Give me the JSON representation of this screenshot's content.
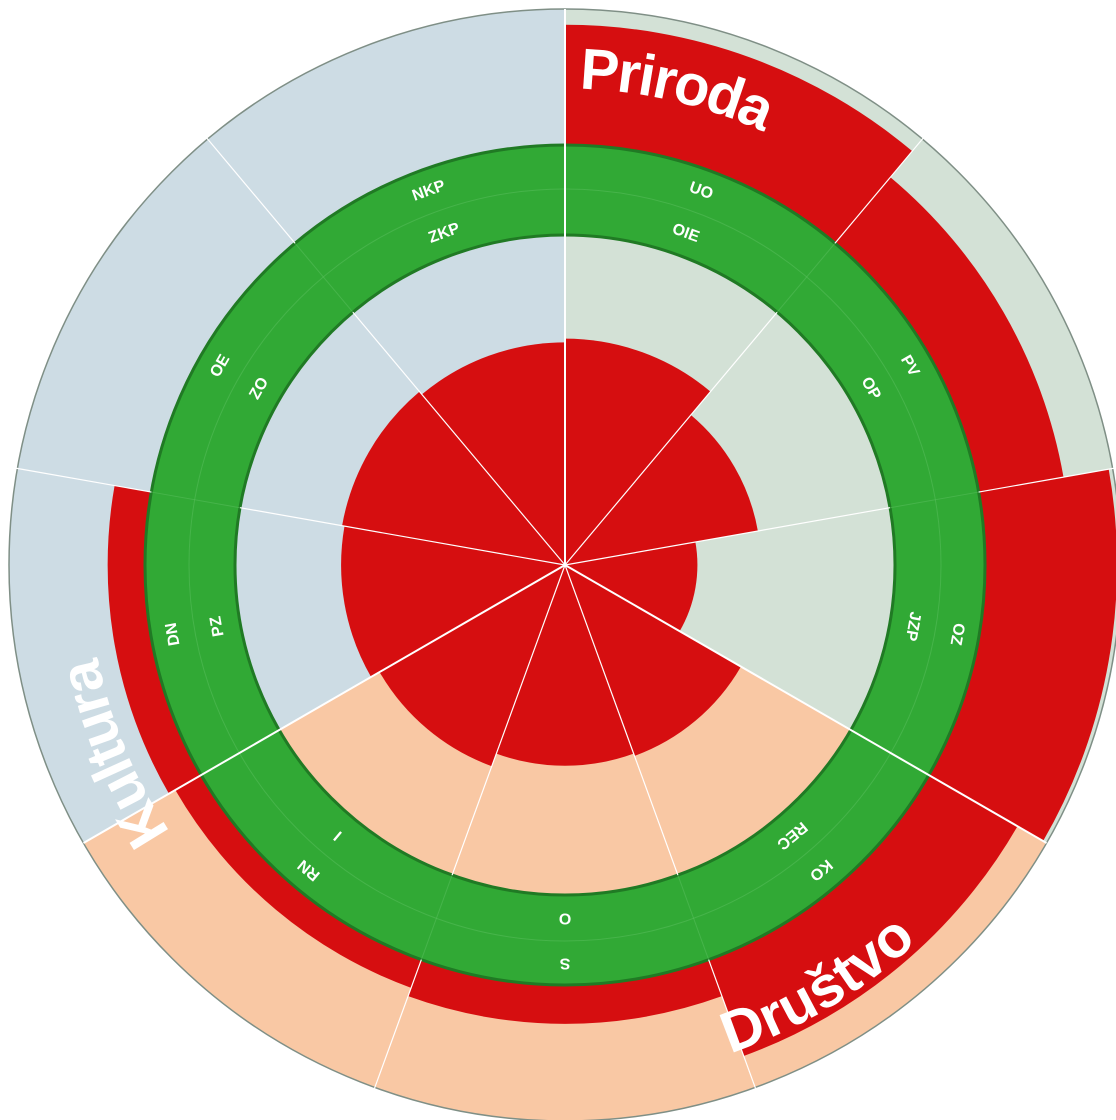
{
  "chart_data": {
    "type": "polar-bar",
    "title": "",
    "sectors": [
      {
        "name": "Priroda",
        "color": "#d3e1d6"
      },
      {
        "name": "Društvo",
        "color": "#f9c8a4"
      },
      {
        "name": "Kultura",
        "color": "#cddce4"
      }
    ],
    "colors": {
      "bar": "#d60e10",
      "ring": "#31a935",
      "ring_edge": "#207a24",
      "divider": "#ffffff",
      "outline": "#7f8f86"
    },
    "scale_max": 1.0,
    "outer_indicators": [
      {
        "label": "UO",
        "sector": "Priroda",
        "value": 0.88
      },
      {
        "label": "PV",
        "sector": "Priroda",
        "value": 0.65
      },
      {
        "label": "OZ",
        "sector": "Priroda",
        "value": 0.96
      },
      {
        "label": "KO",
        "sector": "Društvo",
        "value": 0.76
      },
      {
        "label": "S",
        "sector": "Društvo",
        "value": 0.33
      },
      {
        "label": "RN",
        "sector": "Društvo",
        "value": 0.27
      },
      {
        "label": "DN",
        "sector": "Kultura",
        "value": 0.32
      },
      {
        "label": "OE",
        "sector": "Kultura",
        "value": 0.0
      },
      {
        "label": "NKP",
        "sector": "Kultura",
        "value": 0.0
      }
    ],
    "inner_indicators": [
      {
        "label": "OIE",
        "sector": "Priroda",
        "value": 0.97
      },
      {
        "label": "OP",
        "sector": "Priroda",
        "value": 0.72
      },
      {
        "label": "JZP",
        "sector": "Priroda",
        "value": 0.2
      },
      {
        "label": "REC",
        "sector": "Društvo",
        "value": 0.78
      },
      {
        "label": "O",
        "sector": "Društvo",
        "value": 0.76
      },
      {
        "label": "I",
        "sector": "Društvo",
        "value": 0.87
      },
      {
        "label": "PZ",
        "sector": "Kultura",
        "value": 0.95
      },
      {
        "label": "ZO",
        "sector": "Kultura",
        "value": 0.97
      },
      {
        "label": "ZKP",
        "sector": "Kultura",
        "value": 0.94
      }
    ]
  }
}
